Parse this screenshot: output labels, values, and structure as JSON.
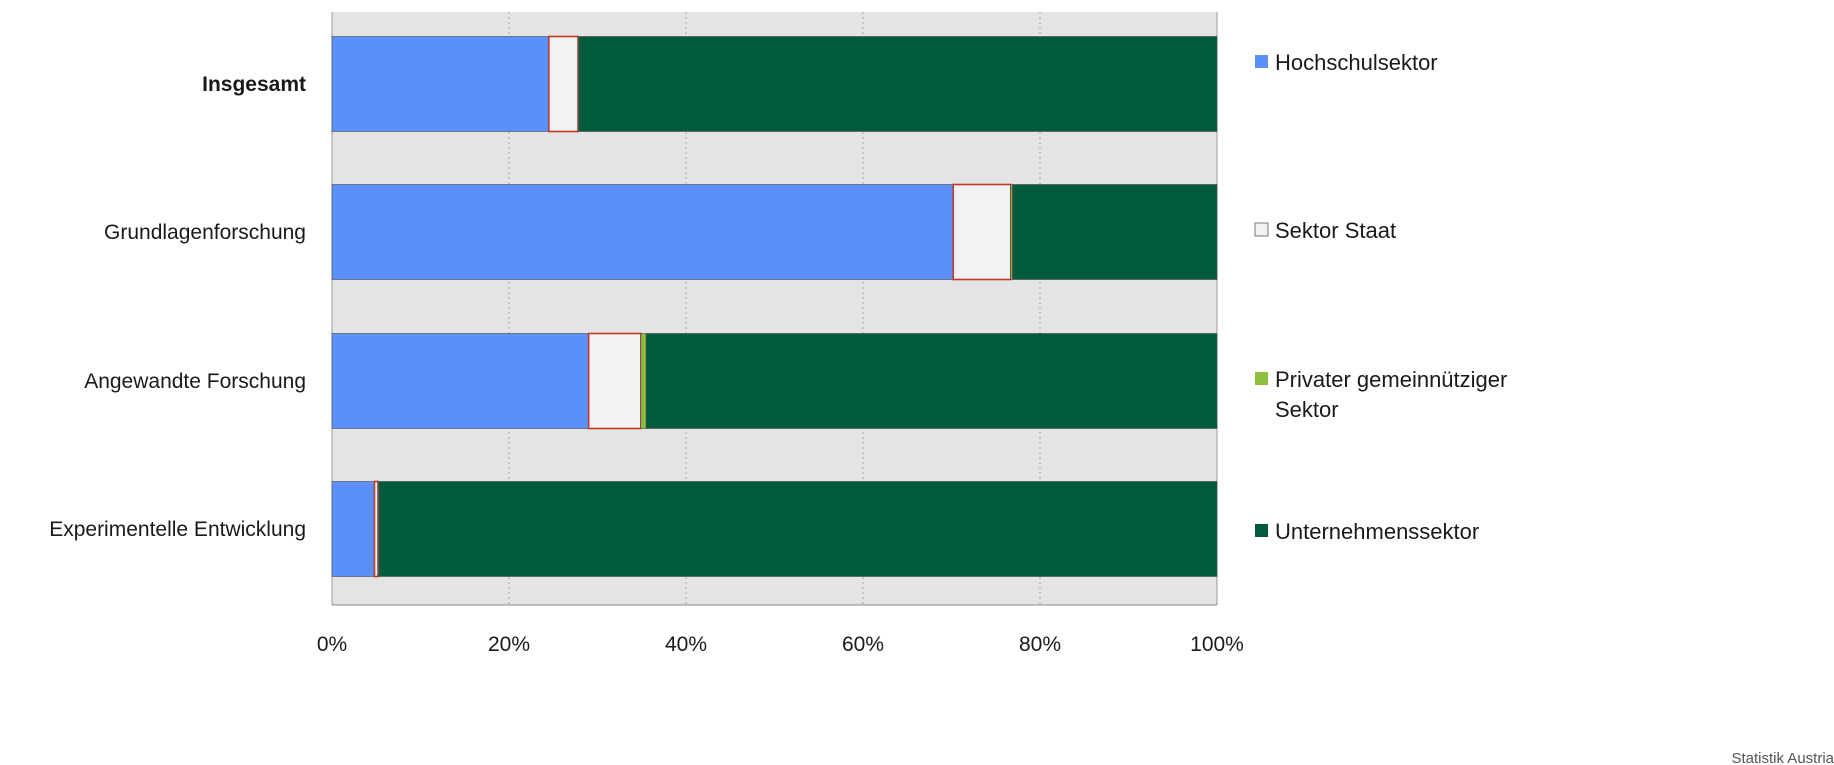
{
  "chart_data": {
    "type": "bar",
    "orientation": "horizontal",
    "stacked": true,
    "percent_stacked": true,
    "categories": [
      "Insgesamt",
      "Grundlagenforschung",
      "Angewandte Forschung",
      "Experimentelle Entwicklung"
    ],
    "category_bold": [
      true,
      false,
      false,
      false
    ],
    "series": [
      {
        "name": "Hochschulsektor",
        "color": "#5b8ff9",
        "values": [
          24.5,
          70.2,
          29.0,
          4.8
        ]
      },
      {
        "name": "Sektor Staat",
        "color": "#f2f2f2",
        "values": [
          3.3,
          6.5,
          5.9,
          0.4
        ]
      },
      {
        "name": "Privater gemeinnütziger Sektor",
        "color": "#8cbf3f",
        "values": [
          0.1,
          0.2,
          0.6,
          0.1
        ]
      },
      {
        "name": "Unternehmenssektor",
        "color": "#005a3c",
        "values": [
          72.1,
          23.1,
          64.5,
          94.7
        ]
      }
    ],
    "xlim": [
      0,
      100
    ],
    "xticks": [
      0,
      20,
      40,
      60,
      80,
      100
    ],
    "xtick_labels": [
      "0%",
      "20%",
      "40%",
      "60%",
      "80%",
      "100%"
    ],
    "title": "",
    "xlabel": "",
    "ylabel": "",
    "grid": true,
    "legend_position": "right",
    "plot_background": "#e4e4e4",
    "segment_border_color": "#c0392b",
    "legend_label_lines": [
      [
        "Hochschulsektor"
      ],
      [
        "Sektor Staat"
      ],
      [
        "Privater gemeinnütziger",
        "Sektor"
      ],
      [
        "Unternehmenssektor"
      ]
    ],
    "source_text": "Statistik Austria"
  }
}
